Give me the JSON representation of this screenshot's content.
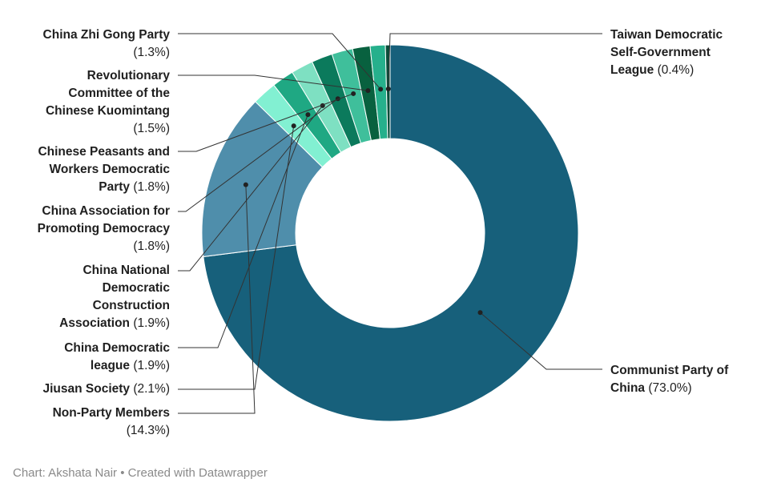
{
  "chart_data": {
    "type": "pie",
    "variant": "donut",
    "legend": "none",
    "slices": [
      {
        "name": "Communist Party of China",
        "value": 73.0,
        "display": "(73.0%)",
        "color": "#17607b"
      },
      {
        "name": "Non-Party Members",
        "value": 14.3,
        "display": "(14.3%)",
        "color": "#4f8eab"
      },
      {
        "name": "Jiusan Society",
        "value": 2.1,
        "display": "(2.1%)",
        "color": "#82f0d2"
      },
      {
        "name": "China Democratic league",
        "value": 1.9,
        "display": "(1.9%)",
        "color": "#1fa883"
      },
      {
        "name": "China National Democratic Construction Association",
        "value": 1.9,
        "display": "(1.9%)",
        "color": "#7ee0c2"
      },
      {
        "name": "China Association for Promoting Democracy",
        "value": 1.8,
        "display": "(1.8%)",
        "color": "#0b7a5c"
      },
      {
        "name": "Chinese Peasants and Workers Democratic Party",
        "value": 1.8,
        "display": "(1.8%)",
        "color": "#3fbf9b"
      },
      {
        "name": "Revolutionary Committee of the Chinese Kuomintang",
        "value": 1.5,
        "display": "(1.5%)",
        "color": "#08613f"
      },
      {
        "name": "China Zhi Gong Party",
        "value": 1.3,
        "display": "(1.3%)",
        "color": "#26b08c"
      },
      {
        "name": "Taiwan Democratic Self-Government League",
        "value": 0.4,
        "display": "(0.4%)",
        "color": "#0a4c3a"
      }
    ]
  },
  "labels": {
    "communist": {
      "lines": [
        "Communist Party of",
        "China"
      ],
      "pct": "(73.0%)"
    },
    "taiwan": {
      "lines": [
        "Taiwan Democratic",
        "Self-Government",
        "League"
      ],
      "pct": "(0.4%)"
    },
    "zhigong": {
      "lines": [
        "China Zhi Gong Party"
      ],
      "pct": "(1.3%)"
    },
    "revolutionary": {
      "lines": [
        "Revolutionary",
        "Committee of the",
        "Chinese Kuomintang"
      ],
      "pct": "(1.5%)"
    },
    "peasants": {
      "lines": [
        "Chinese Peasants and",
        "Workers Democratic",
        "Party"
      ],
      "pct": "(1.8%)"
    },
    "promoting": {
      "lines": [
        "China Association for",
        "Promoting Democracy"
      ],
      "pct": "(1.8%)"
    },
    "construction": {
      "lines": [
        "China National",
        "Democratic",
        "Construction",
        "Association"
      ],
      "pct": "(1.9%)"
    },
    "league": {
      "lines": [
        "China Democratic",
        "league"
      ],
      "pct": "(1.9%)"
    },
    "jiusan": {
      "lines": [
        "Jiusan Society"
      ],
      "pct": "(2.1%)"
    },
    "nonparty": {
      "lines": [
        "Non-Party Members"
      ],
      "pct": "(14.3%)"
    }
  },
  "footer": "Chart: Akshata Nair • Created with Datawrapper"
}
